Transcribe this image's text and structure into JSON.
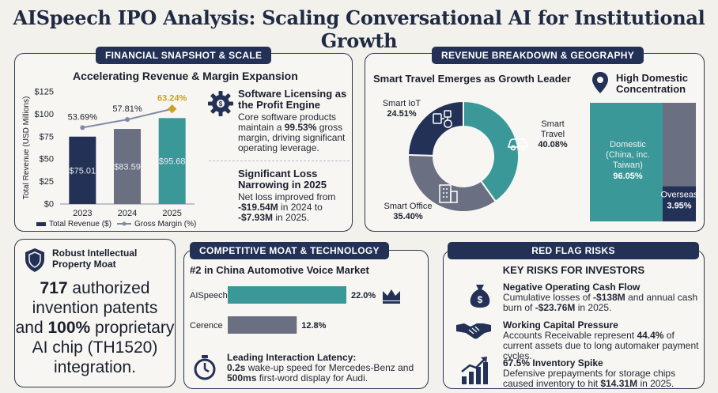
{
  "title": "AISpeech IPO Analysis: Scaling Conversational AI for Institutional Growth",
  "colors": {
    "navy": "#233156",
    "gray": "#6b6f82",
    "teal": "#3a9899",
    "gold": "#c9a227",
    "line": "#7f8aa6"
  },
  "financial": {
    "tag": "FINANCIAL SNAPSHOT & SCALE",
    "chart_title": "Accelerating Revenue & Margin Expansion",
    "legend_revenue": "Total Revenue ($)",
    "legend_margin": "Gross Margin (%)",
    "software_title": "Software Licensing as the Profit Engine",
    "software_text": [
      "Core software products maintain a ",
      "99.53%",
      " gross margin, driving significant operating leverage."
    ],
    "loss_title": "Significant Loss Narrowing in 2025",
    "loss_text": [
      "Net loss improved from ",
      "-$19.54M",
      " in 2024 to ",
      "-$7.93M",
      " in 2025."
    ]
  },
  "revenue": {
    "tag": "REVENUE BREAKDOWN & GEOGRAPHY",
    "donut_title": "Smart Travel Emerges as Growth Leader",
    "geo_title": "High Domestic Concentration",
    "icons": [
      "car-icon",
      "building-icon",
      "iot-devices-icon",
      "map-pin-icon"
    ]
  },
  "ip": {
    "title": "Robust Intellectual Property Moat",
    "line1_num": "717",
    "line1_rest": " authorized",
    "line2": "invention patents",
    "line3_pre": "and ",
    "line3_num": "100%",
    "line3_rest": " proprietary",
    "line4": "AI chip (TH1520)",
    "line5": "integration."
  },
  "moat": {
    "tag": "COMPETITIVE MOAT & TECHNOLOGY",
    "chart_title": "#2 in China Automotive Voice Market",
    "latency_title": "Leading Interaction Latency:",
    "latency_text": [
      "0.2s",
      " wake-up speed for Mercedes-Benz and ",
      "500ms",
      " first-word display for Audi."
    ]
  },
  "risks": {
    "tag": "RED FLAG RISKS",
    "heading": "KEY RISKS FOR INVESTORS",
    "items": [
      {
        "title": "Negative Operating Cash Flow",
        "text": [
          "Cumulative losses of ",
          "-$138M",
          " and annual cash burn of ",
          "-$23.76M",
          " in 2025."
        ]
      },
      {
        "title": "Working Capital Pressure",
        "text": [
          "Accounts Receivable represent ",
          "44.4%",
          " of current assets due to long automaker payment cycles.",
          "",
          ""
        ]
      },
      {
        "title": "67.5% Inventory Spike",
        "text": [
          "Defensive prepayments for storage chips caused inventory to hit ",
          "$14.31M",
          " in 2025.",
          "",
          ""
        ]
      }
    ]
  },
  "chart_data": [
    {
      "type": "bar",
      "title": "Accelerating Revenue & Margin Expansion",
      "categories": [
        "2023",
        "2024",
        "2025"
      ],
      "ylabel": "Total Revenue (USD Millions)",
      "ylim": [
        0,
        125
      ],
      "yticks": [
        "$0",
        "$25",
        "$50",
        "$75",
        "$100",
        "$125"
      ],
      "series": [
        {
          "name": "Total Revenue ($)",
          "values": [
            75.01,
            83.59,
            95.68
          ],
          "labels": [
            "$75.01",
            "$83.59",
            "$95.68"
          ]
        },
        {
          "name": "Gross Margin (%)",
          "type": "line",
          "values": [
            53.69,
            57.81,
            63.24
          ],
          "labels": [
            "53.69%",
            "57.81%",
            "63.24%"
          ]
        }
      ],
      "legend": "bottom"
    },
    {
      "type": "pie",
      "title": "Smart Travel Emerges as Growth Leader",
      "categories": [
        "Smart Travel",
        "Smart Office",
        "Smart IoT"
      ],
      "values": [
        40.08,
        35.4,
        24.51
      ],
      "labels": [
        "40.08%",
        "35.40%",
        "24.51%"
      ]
    },
    {
      "type": "bar",
      "title": "High Domestic Concentration",
      "categories": [
        "Domestic (China, inc. Taiwan)",
        "Overseas"
      ],
      "values": [
        96.05,
        3.95
      ],
      "labels": [
        "96.05%",
        "3.95%"
      ]
    },
    {
      "type": "bar",
      "title": "#2 in China Automotive Voice Market",
      "categories": [
        "AISpeech",
        "Cerence"
      ],
      "values": [
        22.0,
        12.8
      ],
      "labels": [
        "22.0%",
        "12.8%"
      ]
    }
  ]
}
